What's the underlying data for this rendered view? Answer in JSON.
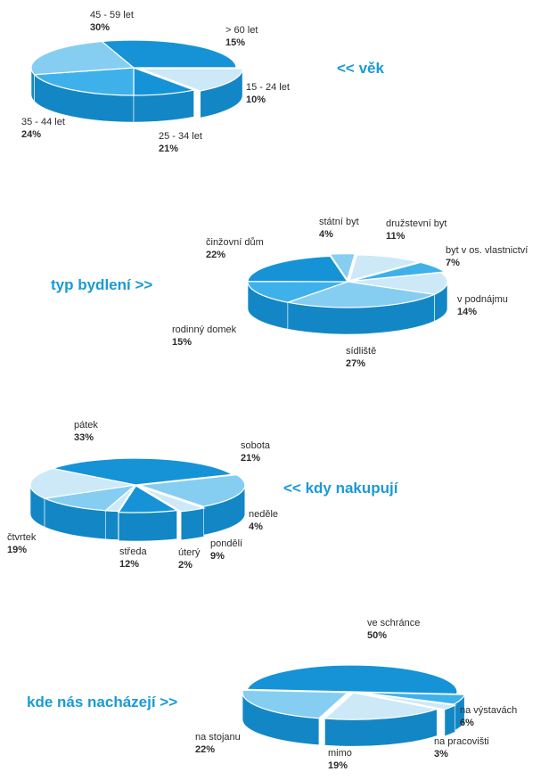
{
  "charts": [
    {
      "title": "<<  věk"
    },
    {
      "title": "typ bydlení  >>"
    },
    {
      "title": "<<  kdy nakupují"
    },
    {
      "title": "kde nás nacházejí  >>"
    }
  ],
  "colors": {
    "title": "#1a9ad6",
    "blue_dark": "#1593d6",
    "blue_mid": "#3fb1ea",
    "blue_light": "#86cdf2",
    "blue_pale": "#cde9f8",
    "label": "#2b2b2b"
  },
  "chart_data": [
    {
      "type": "pie",
      "title": "věk",
      "slices": [
        {
          "label": "> 60 let",
          "value": 15,
          "pct": "15%",
          "color": "#cde9f8"
        },
        {
          "label": "15 - 24 let",
          "value": 10,
          "pct": "10%",
          "color": "#1593d6"
        },
        {
          "label": "25 - 34 let",
          "value": 21,
          "pct": "21%",
          "color": "#3fb1ea"
        },
        {
          "label": "35 - 44 let",
          "value": 24,
          "pct": "24%",
          "color": "#86cdf2"
        },
        {
          "label": "45 - 59 let",
          "value": 30,
          "pct": "30%",
          "color": "#1593d6"
        }
      ]
    },
    {
      "type": "pie",
      "title": "typ bydlení",
      "slices": [
        {
          "label": "státní byt",
          "value": 4,
          "pct": "4%",
          "color": "#86cdf2"
        },
        {
          "label": "družstevní byt",
          "value": 11,
          "pct": "11%",
          "color": "#cde9f8"
        },
        {
          "label": "byt v os. vlastnictví",
          "value": 7,
          "pct": "7%",
          "color": "#3fb1ea"
        },
        {
          "label": "v podnájmu",
          "value": 14,
          "pct": "14%",
          "color": "#cde9f8"
        },
        {
          "label": "sídliště",
          "value": 27,
          "pct": "27%",
          "color": "#86cdf2"
        },
        {
          "label": "rodinný domek",
          "value": 15,
          "pct": "15%",
          "color": "#3fb1ea"
        },
        {
          "label": "činžovní dům",
          "value": 22,
          "pct": "22%",
          "color": "#1593d6"
        }
      ]
    },
    {
      "type": "pie",
      "title": "kdy nakupují",
      "slices": [
        {
          "label": "sobota",
          "value": 21,
          "pct": "21%",
          "color": "#86cdf2"
        },
        {
          "label": "neděle",
          "value": 4,
          "pct": "4%",
          "color": "#cde9f8"
        },
        {
          "label": "pondělí",
          "value": 9,
          "pct": "9%",
          "color": "#1593d6"
        },
        {
          "label": "úterý",
          "value": 2,
          "pct": "2%",
          "color": "#cde9f8"
        },
        {
          "label": "středa",
          "value": 12,
          "pct": "12%",
          "color": "#86cdf2"
        },
        {
          "label": "čtvrtek",
          "value": 19,
          "pct": "19%",
          "color": "#cde9f8"
        },
        {
          "label": "pátek",
          "value": 33,
          "pct": "33%",
          "color": "#1593d6"
        }
      ]
    },
    {
      "type": "pie",
      "title": "kde nás nacházejí",
      "slices": [
        {
          "label": "ve schránce",
          "value": 50,
          "pct": "50%",
          "color": "#1593d6"
        },
        {
          "label": "na výstavách",
          "value": 6,
          "pct": "6%",
          "color": "#3fb1ea"
        },
        {
          "label": "na pracovišti",
          "value": 3,
          "pct": "3%",
          "color": "#cde9f8"
        },
        {
          "label": "mimo",
          "value": 19,
          "pct": "19%",
          "color": "#cde9f8"
        },
        {
          "label": "na stojanu",
          "value": 22,
          "pct": "22%",
          "color": "#86cdf2"
        }
      ]
    }
  ]
}
